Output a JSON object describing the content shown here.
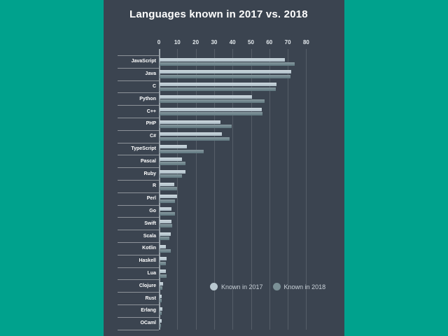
{
  "colors": {
    "background_teal": "#00a28d",
    "panel_dark": "#3b4450",
    "series_2017": "#b9c8d0",
    "series_2018": "#7b9096",
    "title_text": "#ffffff",
    "grid_line": "rgba(255,255,255,0.14)"
  },
  "chart_data": {
    "type": "bar",
    "orientation": "horizontal",
    "title": "Languages known in 2017 vs. 2018",
    "xlim": [
      0,
      80
    ],
    "x_ticks": [
      0,
      10,
      20,
      30,
      40,
      50,
      60,
      70,
      80
    ],
    "grid": true,
    "legend_position": "bottom-right-inside",
    "categories": [
      "JavaScript",
      "Java",
      "C",
      "Python",
      "C++",
      "PHP",
      "C#",
      "TypeScript",
      "Pascal",
      "Ruby",
      "R",
      "Perl",
      "Go",
      "Swift",
      "Scala",
      "Kotlin",
      "Haskell",
      "Lua",
      "Clojure",
      "Rust",
      "Erlang",
      "OCaml"
    ],
    "series": [
      {
        "name": "Known in 2017",
        "color": "#b9c8d0",
        "values": [
          68,
          71.5,
          63.5,
          50,
          55.5,
          33,
          34,
          15,
          12,
          14,
          8,
          9.5,
          6.5,
          6.5,
          6,
          3.5,
          3.7,
          3.3,
          1.8,
          1,
          1.4,
          1.1
        ]
      },
      {
        "name": "Known in 2018",
        "color": "#7b9096",
        "values": [
          73.5,
          71,
          63,
          57,
          56,
          39,
          38,
          24,
          14,
          12,
          9.5,
          8.5,
          8.5,
          7,
          5.5,
          6,
          3.4,
          3.7,
          1.4,
          1.2,
          1,
          0.8
        ]
      }
    ]
  }
}
